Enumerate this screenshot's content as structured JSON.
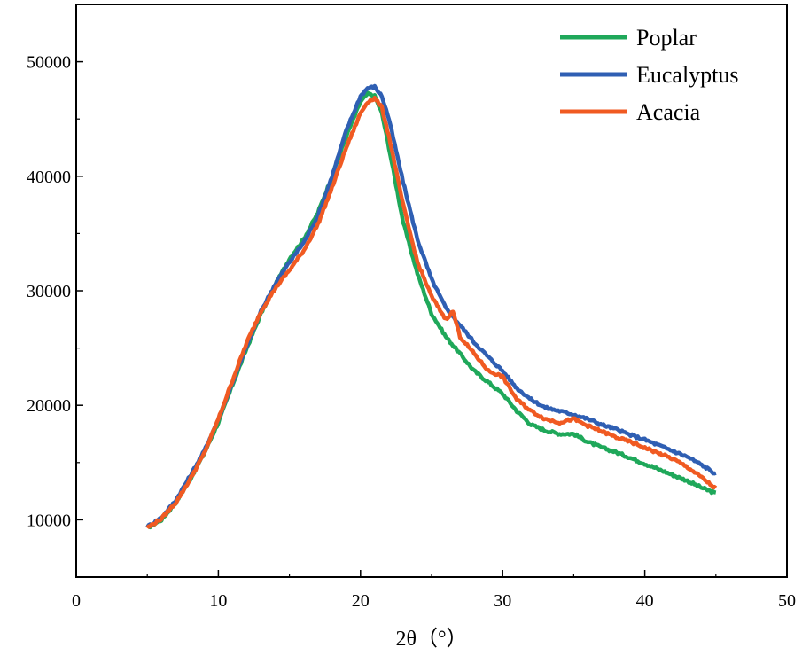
{
  "chart_data": {
    "type": "line",
    "title": "",
    "xlabel": "2θ（°）",
    "ylabel": "",
    "xlim": [
      0,
      50
    ],
    "ylim": [
      5000,
      55000
    ],
    "xticks": [
      0,
      10,
      20,
      30,
      40,
      50
    ],
    "xtick_labels": [
      "0",
      "10",
      "20",
      "30",
      "40",
      "50"
    ],
    "yticks": [
      10000,
      20000,
      30000,
      40000,
      50000
    ],
    "ytick_labels": [
      "10000",
      "20000",
      "30000",
      "40000",
      "50000"
    ],
    "grid": false,
    "legend_position": "top-right",
    "series": [
      {
        "name": "Poplar",
        "color": "#1fa85a",
        "x": [
          5,
          6,
          7,
          8,
          9,
          10,
          11,
          12,
          13,
          14,
          15,
          16,
          17,
          18,
          19,
          20,
          20.5,
          21,
          21.5,
          22,
          23,
          24,
          25,
          26,
          27,
          28,
          29,
          30,
          31,
          32,
          33,
          34,
          35,
          36,
          37,
          38,
          39,
          40,
          41,
          42,
          43,
          44,
          45
        ],
        "y": [
          9300,
          10000,
          11500,
          13500,
          15800,
          18500,
          21800,
          25000,
          28000,
          30500,
          32800,
          34500,
          36800,
          40000,
          43500,
          46500,
          47200,
          47000,
          45500,
          42500,
          36000,
          31500,
          28000,
          26000,
          24500,
          23000,
          22000,
          21000,
          19500,
          18300,
          17800,
          17500,
          17500,
          16800,
          16300,
          15900,
          15400,
          14900,
          14400,
          13900,
          13400,
          12800,
          12300
        ]
      },
      {
        "name": "Eucalyptus",
        "color": "#2f5fb3",
        "x": [
          5,
          6,
          7,
          8,
          9,
          10,
          11,
          12,
          13,
          14,
          15,
          16,
          17,
          18,
          19,
          20,
          20.5,
          21,
          21.5,
          22,
          23,
          24,
          25,
          26,
          27,
          28,
          29,
          30,
          31,
          32,
          33,
          34,
          35,
          36,
          37,
          38,
          39,
          40,
          41,
          42,
          43,
          44,
          45
        ],
        "y": [
          9400,
          10200,
          11700,
          13800,
          16000,
          18800,
          22000,
          25200,
          28200,
          30600,
          32500,
          34200,
          36500,
          40000,
          44000,
          47000,
          47700,
          47800,
          47000,
          45000,
          39500,
          34500,
          31000,
          28500,
          27000,
          25500,
          24200,
          23000,
          21500,
          20500,
          19800,
          19500,
          19200,
          18800,
          18300,
          17900,
          17400,
          17000,
          16500,
          16000,
          15500,
          14800,
          14000
        ]
      },
      {
        "name": "Acacia",
        "color": "#f05a22",
        "x": [
          5,
          6,
          7,
          8,
          9,
          10,
          11,
          12,
          13,
          14,
          15,
          16,
          17,
          18,
          19,
          20,
          20.5,
          21,
          21.5,
          22,
          23,
          24,
          25,
          26,
          26.5,
          27,
          28,
          29,
          30,
          31,
          32,
          33,
          34,
          35,
          36,
          37,
          38,
          39,
          40,
          41,
          42,
          43,
          44,
          45
        ],
        "y": [
          9300,
          10100,
          11500,
          13500,
          15800,
          18800,
          22200,
          25500,
          28200,
          30200,
          31800,
          33500,
          35800,
          39000,
          42500,
          45500,
          46500,
          46800,
          46000,
          43500,
          37500,
          32500,
          29500,
          27500,
          28200,
          26000,
          24500,
          23000,
          22500,
          20500,
          19500,
          18800,
          18500,
          18800,
          18200,
          17700,
          17200,
          16800,
          16300,
          15800,
          15300,
          14600,
          13700,
          12700
        ]
      }
    ]
  }
}
